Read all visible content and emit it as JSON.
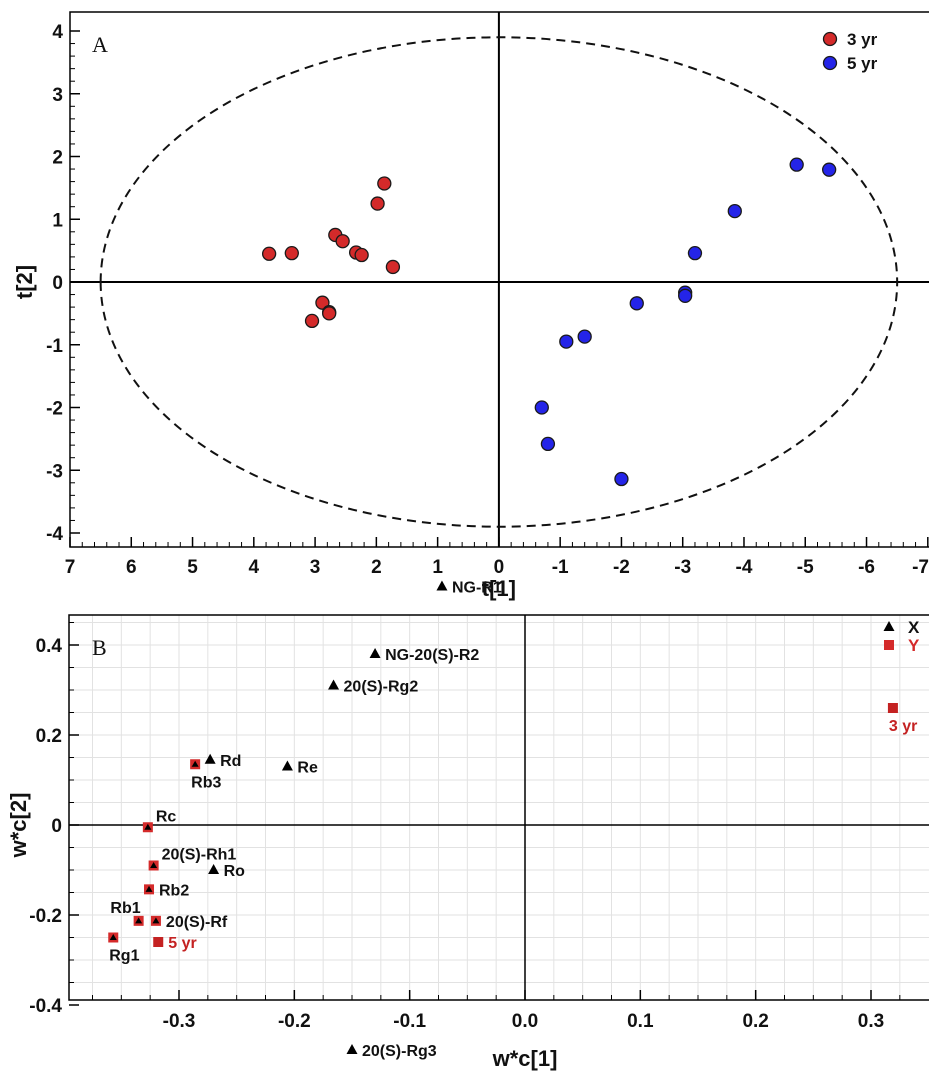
{
  "chart_data": [
    {
      "panel": "A",
      "type": "scatter",
      "xlabel": "t[1]",
      "ylabel": "t[2]",
      "xlim": [
        7,
        -7
      ],
      "ylim": [
        -4.2,
        4.2
      ],
      "x_ticks": [
        7,
        6,
        5,
        4,
        3,
        2,
        1,
        0,
        -1,
        -2,
        -3,
        -4,
        -5,
        -6,
        -7
      ],
      "y_ticks": [
        4,
        3,
        2,
        1,
        0,
        -1,
        -2,
        -3,
        -4
      ],
      "x_tick_labels": [
        "7",
        "6",
        "5",
        "4",
        "3",
        "2",
        "1",
        "0",
        "-1",
        "-2",
        "-3",
        "-4",
        "-5",
        "-6",
        "-7"
      ],
      "y_tick_labels": [
        "4",
        "3",
        "2",
        "1",
        "0",
        "-1",
        "-2",
        "-3",
        "-4"
      ],
      "grid": false,
      "legend_position": "top-right",
      "hotelling_ellipse": {
        "a": 6.5,
        "b": 3.9
      },
      "series": [
        {
          "name": "3 yr",
          "color": "#d42a2a",
          "points": [
            [
              3.75,
              0.45
            ],
            [
              3.38,
              0.46
            ],
            [
              2.67,
              0.75
            ],
            [
              2.55,
              0.65
            ],
            [
              2.33,
              0.47
            ],
            [
              2.24,
              0.43
            ],
            [
              1.98,
              1.25
            ],
            [
              1.87,
              1.57
            ],
            [
              1.73,
              0.24
            ],
            [
              2.88,
              -0.33
            ],
            [
              2.77,
              -0.48
            ],
            [
              2.77,
              -0.5
            ],
            [
              3.05,
              -0.62
            ]
          ]
        },
        {
          "name": "5 yr",
          "color": "#2424e8",
          "points": [
            [
              -4.86,
              1.87
            ],
            [
              -5.39,
              1.79
            ],
            [
              -3.85,
              1.13
            ],
            [
              -3.2,
              0.46
            ],
            [
              -3.04,
              -0.17
            ],
            [
              -3.04,
              -0.22
            ],
            [
              -2.25,
              -0.34
            ],
            [
              -1.4,
              -0.87
            ],
            [
              -1.1,
              -0.95
            ],
            [
              -0.7,
              -2.0
            ],
            [
              -0.8,
              -2.58
            ],
            [
              -2.0,
              -3.14
            ]
          ]
        }
      ]
    },
    {
      "panel": "B",
      "type": "scatter",
      "xlabel": "w*c[1]",
      "ylabel": "w*c[2]",
      "xlim": [
        -0.39,
        0.35
      ],
      "ylim": [
        -0.54,
        0.57
      ],
      "x_ticks": [
        -0.3,
        -0.2,
        -0.1,
        0.0,
        0.1,
        0.2,
        0.3
      ],
      "y_ticks": [
        0.4,
        0.2,
        0,
        -0.2,
        -0.4
      ],
      "x_tick_labels": [
        "-0.3",
        "-0.2",
        "-0.1",
        "0.0",
        "0.1",
        "0.2",
        "0.3"
      ],
      "y_tick_labels": [
        "0.4",
        "0.2",
        "0",
        "-0.2",
        "-0.4"
      ],
      "grid": true,
      "legend_position": "top-right",
      "legend": [
        {
          "name": "X",
          "marker": "triangle",
          "color": "#000000"
        },
        {
          "name": "Y",
          "marker": "square",
          "color": "#d42a2a"
        }
      ],
      "x_variables": [
        {
          "name": "NG-R1",
          "x": -0.072,
          "y": 0.53,
          "label_anchor": "right"
        },
        {
          "name": "NG-20(S)-R2",
          "x": -0.13,
          "y": 0.38,
          "label_anchor": "right"
        },
        {
          "name": "20(S)-Rg2",
          "x": -0.166,
          "y": 0.31,
          "label_anchor": "right"
        },
        {
          "name": "Rd",
          "x": -0.273,
          "y": 0.145,
          "label_anchor": "right"
        },
        {
          "name": "Rb3",
          "x": -0.286,
          "y": 0.135,
          "label_anchor": "below"
        },
        {
          "name": "Re",
          "x": -0.206,
          "y": 0.13,
          "label_anchor": "right"
        },
        {
          "name": "Rc",
          "x": -0.327,
          "y": -0.005,
          "label_anchor": "upper-right"
        },
        {
          "name": "20(S)-Rh1",
          "x": -0.322,
          "y": -0.09,
          "label_anchor": "upper-right"
        },
        {
          "name": "Ro",
          "x": -0.27,
          "y": -0.1,
          "label_anchor": "right"
        },
        {
          "name": "Rb2",
          "x": -0.326,
          "y": -0.143,
          "label_anchor": "right"
        },
        {
          "name": "20(S)-Rf",
          "x": -0.32,
          "y": -0.213,
          "label_anchor": "right"
        },
        {
          "name": "Rb1",
          "x": -0.335,
          "y": -0.213,
          "label_anchor": "upper-left"
        },
        {
          "name": "Rg1",
          "x": -0.357,
          "y": -0.25,
          "label_anchor": "below"
        },
        {
          "name": "20(S)-Rg3",
          "x": -0.15,
          "y": -0.5,
          "label_anchor": "right"
        }
      ],
      "y_variables": [
        {
          "name": "5 yr",
          "x": -0.318,
          "y": -0.26,
          "label_anchor": "right"
        },
        {
          "name": "3 yr",
          "x": 0.319,
          "y": 0.26,
          "label_anchor": "below"
        }
      ],
      "boxed_x_variables": [
        "Rb3",
        "Rc",
        "20(S)-Rh1",
        "Rb2",
        "20(S)-Rf",
        "Rb1",
        "Rg1"
      ]
    }
  ]
}
